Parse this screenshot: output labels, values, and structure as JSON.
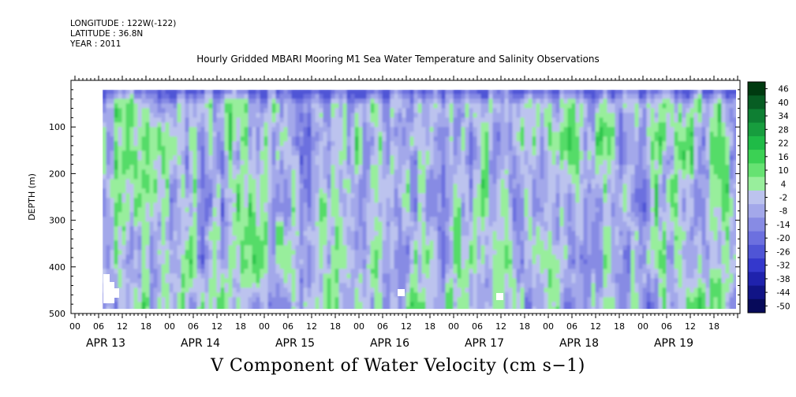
{
  "header": {
    "longitude": "LONGITUDE : 122W(-122)",
    "latitude": "LATITUDE : 36.8N",
    "year": "YEAR : 2011"
  },
  "chart_data": {
    "type": "heatmap",
    "title": "Hourly Gridded MBARI Mooring M1 Sea Water Temperature and Salinity Observations",
    "variable_label": "V Component of Water Velocity (cm s−1)",
    "ylabel": "DEPTH (m)",
    "y_range": [
      0,
      500
    ],
    "y_ticks": [
      "100",
      "200",
      "300",
      "400",
      "500"
    ],
    "y_tick_values": [
      100,
      200,
      300,
      400,
      500
    ],
    "hour_tick_labels": [
      "00",
      "06",
      "12",
      "18",
      "00",
      "06",
      "12",
      "18",
      "00",
      "06",
      "12",
      "18",
      "00",
      "06",
      "12",
      "18",
      "00",
      "06",
      "12",
      "18",
      "00",
      "06",
      "12",
      "18",
      "00",
      "06",
      "12",
      "18"
    ],
    "day_labels": [
      "APR 13",
      "APR 14",
      "APR 15",
      "APR 16",
      "APR 17",
      "APR 18",
      "APR 19"
    ],
    "data_depth_range": [
      20,
      490
    ],
    "colorbar": {
      "labels": [
        "46",
        "40",
        "34",
        "28",
        "22",
        "16",
        "10",
        "4",
        "-2",
        "-8",
        "-14",
        "-20",
        "-26",
        "-32",
        "-38",
        "-44",
        "-50"
      ],
      "colors": [
        "#003a10",
        "#075d23",
        "#0e7f33",
        "#179d3e",
        "#1fbb47",
        "#3bd154",
        "#66e272",
        "#98ee9c",
        "#bcc3ee",
        "#a3a8ea",
        "#878be4",
        "#6c70df",
        "#4f55d6",
        "#3438cc",
        "#1f22ad",
        "#111486",
        "#070a5a"
      ]
    },
    "missing_color": "#ffffff"
  }
}
